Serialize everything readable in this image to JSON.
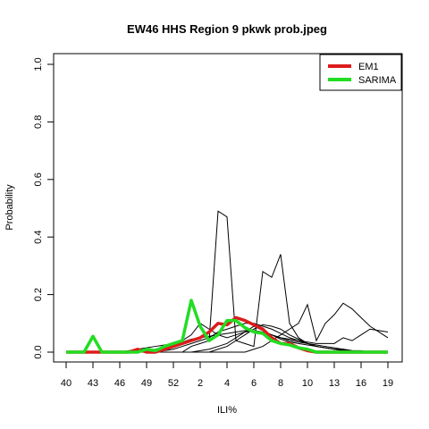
{
  "chart_data": {
    "type": "line",
    "title": "EW46 HHS Region 9 pkwk prob.jpeg",
    "xlabel": "ILI%",
    "ylabel": "Probability",
    "x_tick_labels": [
      "40",
      "43",
      "46",
      "49",
      "52",
      "2",
      "4",
      "6",
      "8",
      "10",
      "13",
      "16",
      "19"
    ],
    "y_tick_labels": [
      "0.0",
      "0.2",
      "0.4",
      "0.6",
      "0.8",
      "1.0"
    ],
    "ylim": [
      0,
      1
    ],
    "legend_position": "top-right",
    "legend": [
      {
        "name": "EM1",
        "color": "#dd1c1c"
      },
      {
        "name": "SARIMA",
        "color": "#22dd22"
      }
    ],
    "series": [
      {
        "name": "EM1",
        "color": "#dd1c1c",
        "values": [
          0,
          0,
          0,
          0,
          0,
          0,
          0,
          0,
          0.01,
          0,
          0,
          0.01,
          0.02,
          0.03,
          0.04,
          0.05,
          0.07,
          0.1,
          0.095,
          0.12,
          0.11,
          0.095,
          0.08,
          0.05,
          0.03,
          0.03,
          0.015,
          0.005,
          0,
          0,
          0,
          0,
          0,
          0,
          0,
          0,
          0
        ]
      },
      {
        "name": "SARIMA",
        "color": "#22dd22",
        "values": [
          0,
          0,
          0,
          0.055,
          0,
          0,
          0,
          0,
          0,
          0.01,
          0.005,
          0.02,
          0.03,
          0.04,
          0.18,
          0.09,
          0.04,
          0.06,
          0.11,
          0.11,
          0.085,
          0.07,
          0.065,
          0.04,
          0.03,
          0.025,
          0.015,
          0.01,
          0,
          0,
          0,
          0,
          0,
          0,
          0,
          0,
          0
        ]
      }
    ],
    "background_series": [
      {
        "color": "#000000",
        "values": [
          0,
          0,
          0,
          0,
          0,
          0,
          0,
          0.005,
          0.01,
          0.015,
          0.02,
          0.025,
          0.03,
          0.035,
          0.045,
          0.05,
          0.055,
          0.06,
          0.065,
          0.07,
          0.075,
          0.07,
          0.065,
          0.06,
          0.05,
          0.04,
          0.035,
          0.03,
          0.025,
          0.02,
          0.015,
          0.01,
          0.005,
          0.005,
          0,
          0,
          0
        ]
      },
      {
        "color": "#000000",
        "values": [
          0,
          0,
          0,
          0,
          0,
          0,
          0,
          0,
          0,
          0,
          0,
          0.005,
          0.01,
          0.02,
          0.03,
          0.04,
          0.05,
          0.07,
          0.08,
          0.09,
          0.1,
          0.1,
          0.09,
          0.08,
          0.065,
          0.05,
          0.04,
          0.03,
          0.02,
          0.015,
          0.01,
          0.005,
          0,
          0,
          0,
          0,
          0
        ]
      },
      {
        "color": "#000000",
        "values": [
          0,
          0,
          0,
          0,
          0,
          0,
          0,
          0,
          0,
          0,
          0,
          0,
          0,
          0,
          0.02,
          0.03,
          0.04,
          0.49,
          0.47,
          0.04,
          0.03,
          0.02,
          0.28,
          0.26,
          0.34,
          0.1,
          0.05,
          0.03,
          0.02,
          0.015,
          0.01,
          0.01,
          0.005,
          0,
          0,
          0,
          0
        ]
      },
      {
        "color": "#000000",
        "values": [
          0,
          0,
          0,
          0,
          0,
          0,
          0,
          0,
          0,
          0,
          0,
          0,
          0,
          0,
          0,
          0,
          0,
          0,
          0,
          0,
          0,
          0.01,
          0.02,
          0.04,
          0.06,
          0.08,
          0.1,
          0.165,
          0.04,
          0.1,
          0.13,
          0.17,
          0.15,
          0.12,
          0.09,
          0.07,
          0.05
        ]
      },
      {
        "color": "#000000",
        "values": [
          0,
          0,
          0,
          0,
          0,
          0,
          0,
          0,
          0,
          0.005,
          0.01,
          0.02,
          0.03,
          0.04,
          0.06,
          0.1,
          0.08,
          0.06,
          0.05,
          0.06,
          0.07,
          0.075,
          0.07,
          0.06,
          0.05,
          0.045,
          0.04,
          0.035,
          0.03,
          0.03,
          0.03,
          0.05,
          0.04,
          0.06,
          0.08,
          0.075,
          0.07
        ]
      },
      {
        "color": "#000000",
        "values": [
          0,
          0,
          0,
          0,
          0,
          0,
          0,
          0,
          0,
          0,
          0,
          0,
          0,
          0,
          0,
          0.005,
          0.01,
          0.02,
          0.03,
          0.05,
          0.07,
          0.09,
          0.075,
          0.06,
          0.045,
          0.035,
          0.03,
          0.025,
          0.02,
          0.015,
          0.01,
          0.008,
          0.005,
          0.003,
          0,
          0,
          0
        ]
      },
      {
        "color": "#000000",
        "values": [
          0,
          0,
          0,
          0,
          0,
          0,
          0,
          0,
          0,
          0,
          0,
          0,
          0,
          0,
          0,
          0,
          0,
          0.01,
          0.02,
          0.04,
          0.06,
          0.08,
          0.095,
          0.09,
          0.08,
          0.06,
          0.045,
          0.03,
          0.02,
          0.015,
          0.01,
          0.005,
          0,
          0,
          0,
          0,
          0
        ]
      }
    ]
  },
  "colors": {
    "background": "#ffffff",
    "axis": "#000000",
    "em1": "#dd1c1c",
    "sarima": "#22dd22",
    "background_series": "#000000"
  }
}
